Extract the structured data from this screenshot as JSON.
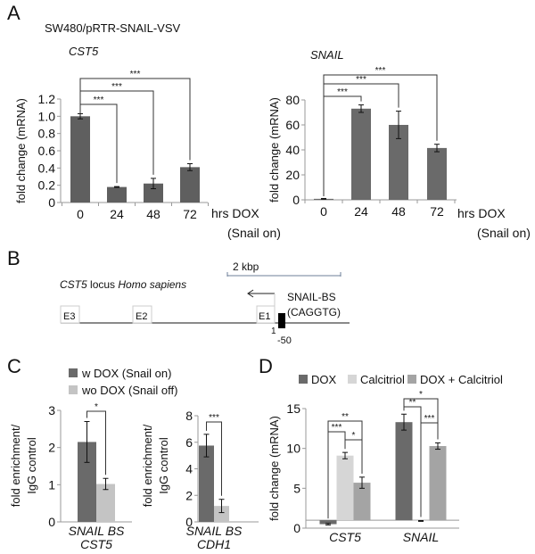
{
  "panels": {
    "A": {
      "letter": "A",
      "cell_line": "SW480/pRTR-SNAIL-VSV"
    },
    "B": {
      "letter": "B",
      "scale_label": "2 kbp",
      "locus_gene": "CST5",
      "locus_text": " locus ",
      "locus_species": "Homo sapiens",
      "exons": [
        "E3",
        "E2",
        "E1"
      ],
      "site_label": "SNAIL-BS",
      "site_motif": "(CAGGTG)",
      "pos_1": "1",
      "pos_50": "-50"
    },
    "C": {
      "letter": "C"
    },
    "D": {
      "letter": "D"
    }
  },
  "chart_data": [
    {
      "id": "A1",
      "type": "bar",
      "title": "CST5",
      "ylabel": "fold change (mRNA)",
      "xlabel": "hrs DOX",
      "xlabel2": "(Snail on)",
      "ylim": [
        0,
        1.2
      ],
      "yticks": [
        {
          "v": 0,
          "t": "0"
        },
        {
          "v": 0.2,
          "t": "0.2"
        },
        {
          "v": 0.4,
          "t": "0.4"
        },
        {
          "v": 0.6,
          "t": "0.6"
        },
        {
          "v": 0.8,
          "t": "0.8"
        },
        {
          "v": 1.0,
          "t": "1.0"
        },
        {
          "v": 1.2,
          "t": "1.2"
        }
      ],
      "categories": [
        "0",
        "24",
        "48",
        "72"
      ],
      "series": [
        {
          "values": [
            1.0,
            0.18,
            0.22,
            0.41
          ],
          "errors": [
            0.03,
            0.005,
            0.06,
            0.04
          ],
          "color": "#5f5f5f"
        }
      ],
      "significance": [
        {
          "from": 0,
          "to": 1,
          "label": "***"
        },
        {
          "from": 0,
          "to": 2,
          "label": "***"
        },
        {
          "from": 0,
          "to": 3,
          "label": "***"
        }
      ]
    },
    {
      "id": "A2",
      "type": "bar",
      "title": "SNAIL",
      "ylabel": "fold change (mRNA)",
      "xlabel": "hrs DOX",
      "xlabel2": "(Snail on)",
      "ylim": [
        0,
        80
      ],
      "yticks": [
        {
          "v": 0,
          "t": "0"
        },
        {
          "v": 20,
          "t": "20"
        },
        {
          "v": 40,
          "t": "40"
        },
        {
          "v": 60,
          "t": "60"
        },
        {
          "v": 80,
          "t": "80"
        }
      ],
      "categories": [
        "0",
        "24",
        "48",
        "72"
      ],
      "series": [
        {
          "values": [
            0.8,
            73,
            60,
            41.5
          ],
          "errors": [
            0.3,
            3,
            11,
            3
          ],
          "color": "#6a6a6a"
        }
      ],
      "significance": [
        {
          "from": 0,
          "to": 1,
          "label": "***"
        },
        {
          "from": 0,
          "to": 2,
          "label": "***"
        },
        {
          "from": 0,
          "to": 3,
          "label": "***"
        }
      ]
    },
    {
      "id": "C1",
      "type": "bar",
      "ylabel": "fold enrichment/\nIgG control",
      "ylim": [
        0,
        3
      ],
      "yticks": [
        {
          "v": 0,
          "t": "0"
        },
        {
          "v": 1,
          "t": "1"
        },
        {
          "v": 2,
          "t": "2"
        },
        {
          "v": 3,
          "t": "3"
        }
      ],
      "categories": [
        "SNAIL BS\nCST5"
      ],
      "series": [
        {
          "name": "w DOX (Snail on)",
          "values": [
            2.15
          ],
          "errors": [
            0.55
          ],
          "color": "#6a6a6a"
        },
        {
          "name": "wo DOX (Snail off)",
          "values": [
            1.02
          ],
          "errors": [
            0.15
          ],
          "color": "#c4c4c4"
        }
      ],
      "legend": "top-left",
      "significance": [
        {
          "group": 0,
          "from": 0,
          "to": 1,
          "label": "*"
        }
      ]
    },
    {
      "id": "C2",
      "type": "bar",
      "ylabel": "fold enrichment/\nIgG control",
      "ylim": [
        0,
        8
      ],
      "yticks": [
        {
          "v": 0,
          "t": "0"
        },
        {
          "v": 2,
          "t": "2"
        },
        {
          "v": 4,
          "t": "4"
        },
        {
          "v": 6,
          "t": "6"
        },
        {
          "v": 8,
          "t": "8"
        }
      ],
      "categories": [
        "SNAIL BS\nCDH1"
      ],
      "series": [
        {
          "values": [
            5.75
          ],
          "errors": [
            0.85
          ],
          "color": "#6a6a6a"
        },
        {
          "values": [
            1.2
          ],
          "errors": [
            0.5
          ],
          "color": "#c4c4c4"
        }
      ],
      "significance": [
        {
          "group": 0,
          "from": 0,
          "to": 1,
          "label": "***"
        }
      ]
    },
    {
      "id": "D",
      "type": "bar",
      "ylabel": "fold change (mRNA)",
      "ylim": [
        0,
        15
      ],
      "baseline": 1,
      "yticks": [
        {
          "v": 0,
          "t": "0"
        },
        {
          "v": 5,
          "t": "5"
        },
        {
          "v": 10,
          "t": "10"
        },
        {
          "v": 15,
          "t": "15"
        }
      ],
      "categories": [
        "CST5",
        "SNAIL"
      ],
      "series": [
        {
          "name": "DOX",
          "values": [
            0.5,
            13.3
          ],
          "errors": [
            0.1,
            1.0
          ],
          "color": "#6a6a6a"
        },
        {
          "name": "Calcitriol",
          "values": [
            9.1,
            0.9
          ],
          "errors": [
            0.4,
            0.05
          ],
          "color": "#d6d6d6"
        },
        {
          "name": "DOX + Calcitriol",
          "values": [
            5.7,
            10.3
          ],
          "errors": [
            0.7,
            0.4
          ],
          "color": "#a4a4a4"
        }
      ],
      "legend": "top",
      "significance": [
        {
          "group": 0,
          "from": 0,
          "to": 1,
          "label": "***"
        },
        {
          "group": 0,
          "from": 1,
          "to": 2,
          "label": "*"
        },
        {
          "group": 0,
          "from": 0,
          "to": 2,
          "label": "**"
        },
        {
          "group": 1,
          "from": 0,
          "to": 1,
          "label": "**"
        },
        {
          "group": 1,
          "from": 1,
          "to": 2,
          "label": "***"
        },
        {
          "group": 1,
          "from": 0,
          "to": 2,
          "label": "*"
        }
      ]
    }
  ]
}
